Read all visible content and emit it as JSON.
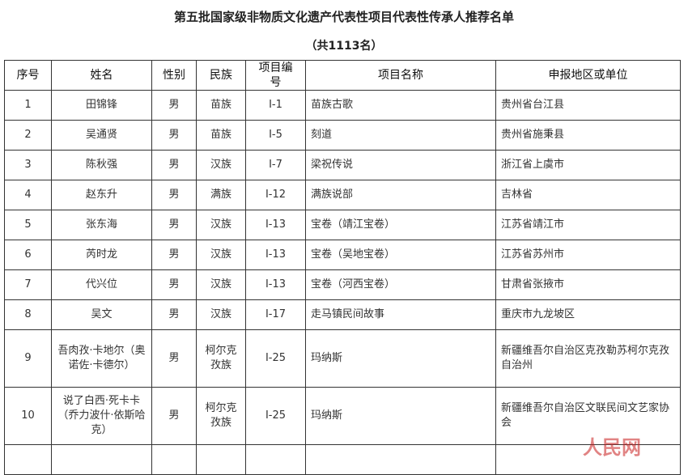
{
  "title": "第五批国家级非物质文化遗产代表性项目代表性传承人推荐名单",
  "subtitle": "（共1113名）",
  "headers": [
    "序号",
    "姓名",
    "性别",
    "民族",
    "项目编号",
    "项目名称",
    "申报地区或单位"
  ],
  "rows": [
    [
      "1",
      "田锦锋",
      "男",
      "苗族",
      "Ⅰ-1",
      "苗族古歌",
      "贵州省台江县"
    ],
    [
      "2",
      "吴通贤",
      "男",
      "苗族",
      "Ⅰ-5",
      "刻道",
      "贵州省施秉县"
    ],
    [
      "3",
      "陈秋强",
      "男",
      "汉族",
      "Ⅰ-7",
      "梁祝传说",
      "浙江省上虞市"
    ],
    [
      "4",
      "赵东升",
      "男",
      "满族",
      "Ⅰ-12",
      "满族说部",
      "吉林省"
    ],
    [
      "5",
      "张东海",
      "男",
      "汉族",
      "Ⅰ-13",
      "宝卷（靖江宝卷）",
      "江苏省靖江市"
    ],
    [
      "6",
      "芮时龙",
      "男",
      "汉族",
      "Ⅰ-13",
      "宝卷（吴地宝卷）",
      "江苏省苏州市"
    ],
    [
      "7",
      "代兴位",
      "男",
      "汉族",
      "Ⅰ-13",
      "宝卷（河西宝卷）",
      "甘肃省张掖市"
    ],
    [
      "8",
      "吴文",
      "男",
      "汉族",
      "Ⅰ-17",
      "走马镇民间故事",
      "重庆市九龙坡区"
    ],
    [
      "9",
      "吾肉孜·卡地尔（奥诺佐·卡德尔）",
      "男",
      "柯尔克孜族",
      "Ⅰ-25",
      "玛纳斯",
      "新疆维吾尔自治区克孜勒苏柯尔克孜自治州"
    ],
    [
      "10",
      "说了白西·死卡卡（乔力波什·依斯哈克）",
      "男",
      "柯尔克孜族",
      "Ⅰ-25",
      "玛纳斯",
      "新疆维吾尔自治区文联民间文艺家协会"
    ]
  ],
  "watermark": "人民网 新疆频道"
}
